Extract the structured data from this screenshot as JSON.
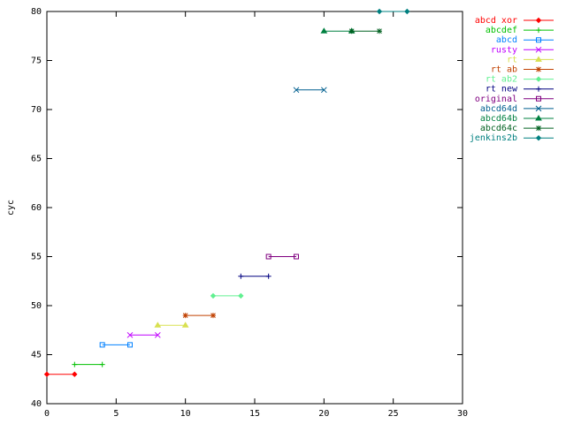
{
  "chart_data": {
    "type": "scatter",
    "y_label": "cyc",
    "xlim": [
      0,
      30
    ],
    "xticks": [
      0,
      5,
      10,
      15,
      20,
      25,
      30
    ],
    "ylim": [
      40,
      80
    ],
    "yticks": [
      40,
      45,
      50,
      55,
      60,
      65,
      70,
      75,
      80
    ],
    "legend": "top-right",
    "series": [
      {
        "name": "abcd xor",
        "color": "#ff0000",
        "x": [
          0,
          2
        ],
        "values": [
          43,
          43
        ]
      },
      {
        "name": "abcdef",
        "color": "#00c000",
        "x": [
          2,
          4
        ],
        "values": [
          44,
          44
        ]
      },
      {
        "name": "abcd",
        "color": "#0080ff",
        "x": [
          4,
          6
        ],
        "values": [
          46,
          46
        ]
      },
      {
        "name": "rusty",
        "color": "#c000ff",
        "x": [
          6,
          8
        ],
        "values": [
          47,
          47
        ]
      },
      {
        "name": "rt",
        "color": "#d8e050",
        "x": [
          8,
          10
        ],
        "values": [
          48,
          48
        ]
      },
      {
        "name": "rt ab",
        "color": "#c04000",
        "x": [
          10,
          12
        ],
        "values": [
          49,
          49
        ]
      },
      {
        "name": "rt ab2",
        "color": "#60f090",
        "x": [
          12,
          14
        ],
        "values": [
          51,
          51
        ]
      },
      {
        "name": "rt new",
        "color": "#000080",
        "x": [
          14,
          16
        ],
        "values": [
          53,
          53
        ]
      },
      {
        "name": "original",
        "color": "#800080",
        "x": [
          16,
          18
        ],
        "values": [
          55,
          55
        ]
      },
      {
        "name": "abcd64d",
        "color": "#005f8f",
        "x": [
          18,
          20
        ],
        "values": [
          72,
          72
        ]
      },
      {
        "name": "abcd64b",
        "color": "#008040",
        "x": [
          20,
          22
        ],
        "values": [
          78,
          78
        ]
      },
      {
        "name": "abcd64c",
        "color": "#006020",
        "x": [
          22,
          24
        ],
        "values": [
          78,
          78
        ]
      },
      {
        "name": "jenkins2b",
        "color": "#008080",
        "x": [
          24,
          26
        ],
        "values": [
          80,
          80
        ]
      }
    ]
  }
}
